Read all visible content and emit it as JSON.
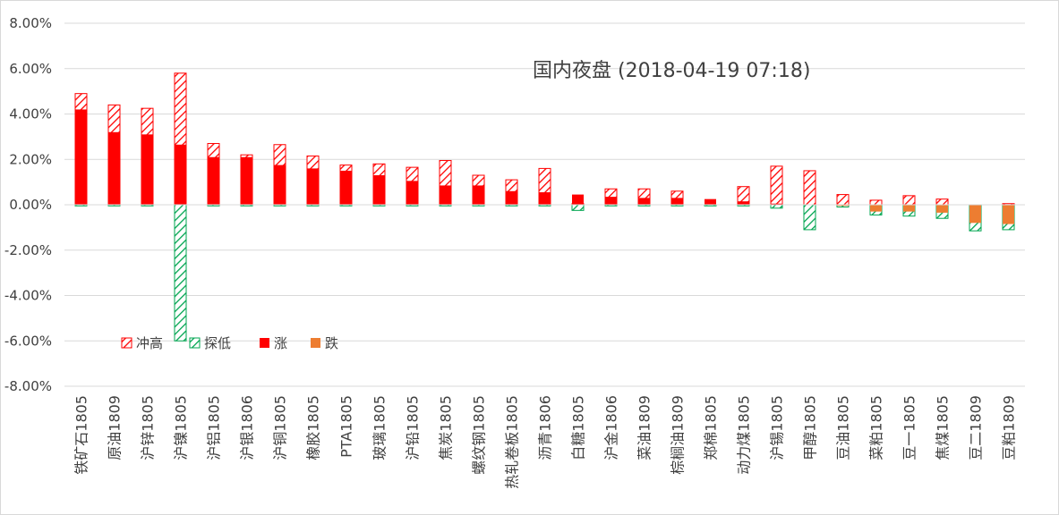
{
  "chart_data": {
    "type": "bar",
    "title": "国内夜盘 (2018-04-19 07:18)",
    "xlabel": "",
    "ylabel": "",
    "ylim": [
      -8,
      8
    ],
    "ytick_step": 2,
    "ytick_labels": [
      "8.00%",
      "6.00%",
      "4.00%",
      "2.00%",
      "0.00%",
      "-2.00%",
      "-4.00%",
      "-6.00%",
      "-8.00%"
    ],
    "grid": true,
    "legend_position": "lower-left",
    "categories": [
      "铁矿石1805",
      "原油1809",
      "沪锌1805",
      "沪镍1805",
      "沪铝1805",
      "沪银1806",
      "沪铜1805",
      "橡胶1805",
      "PTA1805",
      "玻璃1805",
      "沪铅1805",
      "焦炭1805",
      "螺纹钢1805",
      "热轧卷板1805",
      "沥青1806",
      "白糖1805",
      "沪金1806",
      "菜油1809",
      "棕榈油1809",
      "郑棉1805",
      "动力煤1805",
      "沪锡1805",
      "甲醇1805",
      "豆油1805",
      "菜粕1805",
      "豆一1805",
      "焦煤1805",
      "豆二1809",
      "豆粕1809"
    ],
    "series": [
      {
        "name": "冲高",
        "color": "#ff0000",
        "pattern": "hatch",
        "values": [
          4.9,
          4.4,
          4.25,
          5.8,
          2.7,
          2.2,
          2.65,
          2.15,
          1.75,
          1.8,
          1.65,
          1.95,
          1.3,
          1.1,
          1.6,
          0.05,
          0.7,
          0.7,
          0.6,
          0.0,
          0.8,
          1.7,
          1.5,
          0.45,
          0.2,
          0.4,
          0.25,
          0.0,
          0.05
        ]
      },
      {
        "name": "探低",
        "color": "#00a550",
        "pattern": "hatch",
        "values": [
          -0.05,
          -0.05,
          -0.05,
          -6.0,
          -0.05,
          -0.05,
          -0.05,
          -0.05,
          -0.05,
          -0.05,
          -0.05,
          -0.05,
          -0.05,
          -0.05,
          -0.05,
          -0.25,
          -0.05,
          -0.05,
          -0.05,
          -0.05,
          -0.05,
          -0.15,
          -1.1,
          -0.1,
          -0.45,
          -0.5,
          -0.6,
          -1.15,
          -1.1
        ]
      },
      {
        "name": "涨",
        "color": "#ff0000",
        "pattern": "solid",
        "values": [
          4.2,
          3.2,
          3.1,
          2.65,
          2.1,
          2.1,
          1.75,
          1.6,
          1.5,
          1.3,
          1.05,
          0.85,
          0.85,
          0.6,
          0.55,
          0.45,
          0.35,
          0.3,
          0.3,
          0.25,
          0.15,
          0.05,
          0,
          0,
          0,
          0,
          0,
          0,
          0
        ]
      },
      {
        "name": "跌",
        "color": "#ed7d31",
        "pattern": "solid",
        "values": [
          0,
          0,
          0,
          0,
          0,
          0,
          0,
          0,
          0,
          0,
          0,
          0,
          0,
          0,
          0,
          0,
          0,
          0,
          0,
          0,
          0,
          0,
          0,
          -0.05,
          -0.3,
          -0.3,
          -0.35,
          -0.8,
          -0.85
        ]
      }
    ]
  }
}
